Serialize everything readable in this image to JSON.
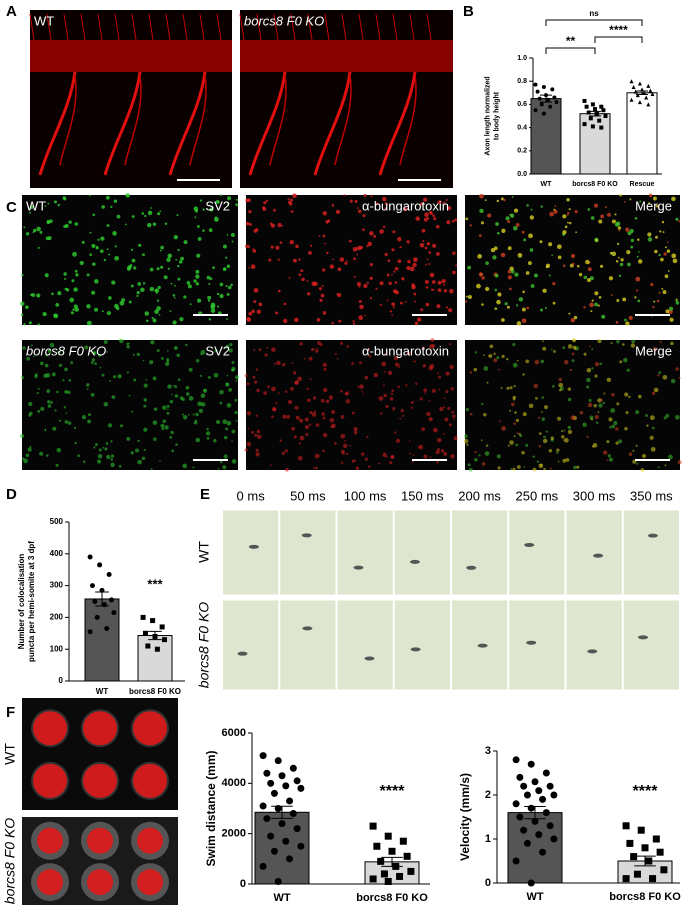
{
  "panels": [
    "A",
    "B",
    "C",
    "D",
    "E",
    "F"
  ],
  "panel_a": {
    "labels": [
      "WT",
      "borcs8 F0 KO"
    ]
  },
  "panel_c": {
    "rows": [
      "WT",
      "borcs8 F0 KO"
    ],
    "channels": [
      "SV2",
      "α-bungarotoxin",
      "Merge"
    ]
  },
  "panel_e": {
    "times": [
      "0 ms",
      "50 ms",
      "100 ms",
      "150 ms",
      "200 ms",
      "250 ms",
      "300 ms",
      "350 ms"
    ],
    "rows": [
      "WT",
      "borcs8 F0 KO"
    ]
  },
  "panel_f": {
    "rows": [
      "WT",
      "borcs8 F0 KO"
    ]
  },
  "chart_data": [
    {
      "type": "bar",
      "ylabel": [
        "Axon length normalized",
        "to body height"
      ],
      "categories": [
        "WT",
        "borcs8 F0 KO",
        "Rescue"
      ],
      "values": [
        0.65,
        0.52,
        0.7
      ],
      "errors": [
        0.03,
        0.02,
        0.015
      ],
      "colors": [
        "#555555",
        "#d9d9d9",
        "#ffffff"
      ],
      "points": [
        [
          0.77,
          0.75,
          0.73,
          0.71,
          0.68,
          0.66,
          0.65,
          0.64,
          0.62,
          0.6,
          0.58,
          0.55,
          0.52
        ],
        [
          0.63,
          0.6,
          0.58,
          0.58,
          0.56,
          0.55,
          0.53,
          0.52,
          0.5,
          0.48,
          0.46,
          0.43,
          0.41,
          0.4
        ],
        [
          0.8,
          0.78,
          0.76,
          0.75,
          0.73,
          0.72,
          0.71,
          0.7,
          0.69,
          0.68,
          0.66,
          0.64,
          0.62,
          0.6
        ]
      ],
      "ylim": [
        0,
        1.0
      ],
      "yticks": [
        {
          "value": 0,
          "label": "0.0"
        },
        0.2,
        0.4,
        0.6,
        0.8,
        {
          "value": 1,
          "label": "1.0"
        }
      ],
      "annotations": [
        "**",
        "****",
        "ns"
      ]
    },
    {
      "type": "bar",
      "ylabel": [
        "Number of colocalisation",
        "puncta per hemi-somite at 3 dpf"
      ],
      "categories": [
        "WT",
        "borcs8 F0 KO"
      ],
      "values": [
        258,
        143
      ],
      "errors": [
        22,
        13
      ],
      "colors": [
        "#555555",
        "#d9d9d9"
      ],
      "points": [
        [
          390,
          365,
          335,
          300,
          285,
          255,
          250,
          240,
          215,
          200,
          165,
          155
        ],
        [
          200,
          190,
          170,
          150,
          140,
          130,
          110,
          100
        ]
      ],
      "ylim": [
        0,
        500
      ],
      "yticks": [
        0,
        100,
        200,
        300,
        400,
        500
      ],
      "annotations": [
        "***"
      ]
    },
    {
      "type": "bar",
      "ylabel": [
        "Swim distance (mm)"
      ],
      "categories": [
        "WT",
        "borcs8 F0 KO"
      ],
      "values": [
        2850,
        880
      ],
      "errors": [
        240,
        180
      ],
      "colors": [
        "#555555",
        "#d9d9d9"
      ],
      "points": [
        [
          5100,
          4900,
          4600,
          4400,
          4300,
          4100,
          4000,
          3900,
          3800,
          3600,
          3300,
          3100,
          3000,
          2800,
          2600,
          2400,
          2200,
          1900,
          1700,
          1500,
          1300,
          1000,
          700,
          100
        ],
        [
          2300,
          1900,
          1700,
          1500,
          1300,
          1100,
          900,
          700,
          500,
          400,
          300,
          200,
          100
        ]
      ],
      "ylim": [
        0,
        6000
      ],
      "yticks": [
        0,
        2000,
        4000,
        6000
      ],
      "annotations": [
        "****"
      ]
    },
    {
      "type": "bar",
      "ylabel": [
        "Velocity (mm/s)"
      ],
      "categories": [
        "WT",
        "borcs8 F0 KO"
      ],
      "values": [
        1.6,
        0.5
      ],
      "errors": [
        0.14,
        0.11
      ],
      "colors": [
        "#555555",
        "#d9d9d9"
      ],
      "points": [
        [
          2.8,
          2.7,
          2.5,
          2.4,
          2.3,
          2.2,
          2.2,
          2.1,
          2.0,
          2.0,
          1.9,
          1.8,
          1.7,
          1.6,
          1.5,
          1.4,
          1.3,
          1.2,
          1.1,
          1.0,
          0.9,
          0.7,
          0.5,
          0.0
        ],
        [
          1.3,
          1.2,
          1.0,
          0.9,
          0.8,
          0.7,
          0.6,
          0.5,
          0.3,
          0.2,
          0.1,
          0.1
        ]
      ],
      "ylim": [
        0,
        3
      ],
      "yticks": [
        0,
        1,
        2,
        3
      ],
      "annotations": [
        "****"
      ]
    }
  ]
}
